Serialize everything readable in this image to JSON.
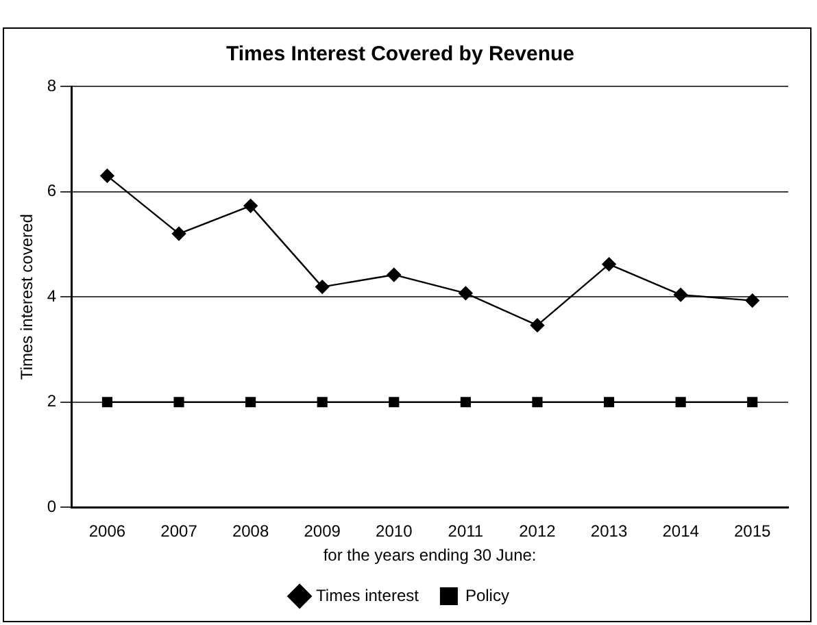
{
  "chart_data": {
    "type": "line",
    "title": "Times Interest Covered by Revenue",
    "xlabel": "for the years ending 30 June:",
    "ylabel": "Times interest covered",
    "categories": [
      "2006",
      "2007",
      "2008",
      "2009",
      "2010",
      "2011",
      "2012",
      "2013",
      "2014",
      "2015"
    ],
    "series": [
      {
        "name": "Times interest",
        "color": "#000000",
        "marker": "diamond",
        "values": [
          6.3,
          5.2,
          5.73,
          4.19,
          4.42,
          4.07,
          3.46,
          4.62,
          4.04,
          3.93
        ]
      },
      {
        "name": "Policy",
        "color": "#000000",
        "marker": "square",
        "values": [
          2,
          2,
          2,
          2,
          2,
          2,
          2,
          2,
          2,
          2
        ]
      }
    ],
    "ylim": [
      0,
      8
    ],
    "yticks": [
      0,
      2,
      4,
      6,
      8
    ],
    "grid": "y",
    "legend": "bottom",
    "line_style": "solid"
  }
}
